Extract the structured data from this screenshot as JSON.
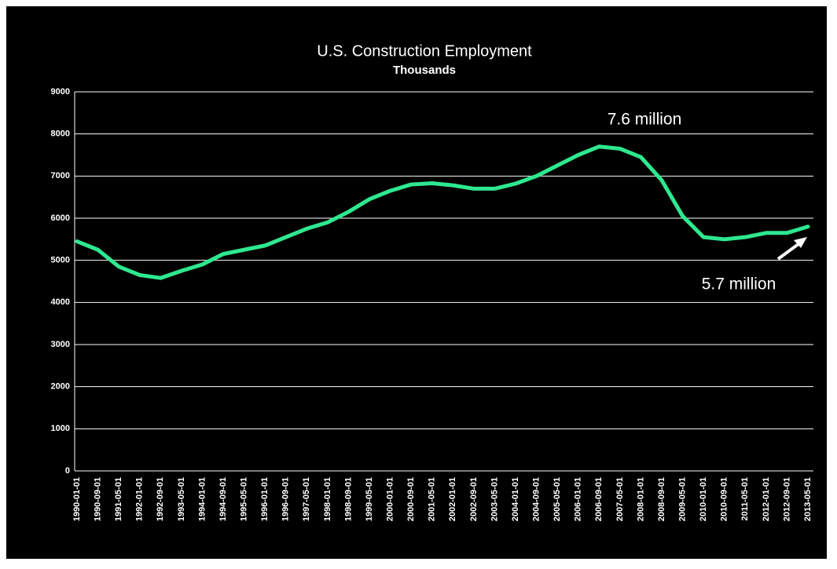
{
  "chart_data": {
    "type": "line",
    "title": "U.S. Construction Employment",
    "subtitle": "Thousands",
    "categories": [
      "1990-01-01",
      "1990-09-01",
      "1991-05-01",
      "1992-01-01",
      "1992-09-01",
      "1993-05-01",
      "1994-01-01",
      "1994-09-01",
      "1995-05-01",
      "1996-01-01",
      "1996-09-01",
      "1997-05-01",
      "1998-01-01",
      "1998-09-01",
      "1999-05-01",
      "2000-01-01",
      "2000-09-01",
      "2001-05-01",
      "2002-01-01",
      "2002-09-01",
      "2003-05-01",
      "2004-01-01",
      "2004-09-01",
      "2005-05-01",
      "2006-01-01",
      "2006-09-01",
      "2007-05-01",
      "2008-01-01",
      "2008-09-01",
      "2009-05-01",
      "2010-01-01",
      "2010-09-01",
      "2011-05-01",
      "2012-01-01",
      "2012-09-01",
      "2013-05-01"
    ],
    "values": [
      5450,
      5250,
      4850,
      4650,
      4580,
      4750,
      4900,
      5150,
      5250,
      5350,
      5550,
      5750,
      5900,
      6150,
      6450,
      6650,
      6800,
      6830,
      6780,
      6700,
      6700,
      6820,
      7000,
      7250,
      7500,
      7700,
      7650,
      7450,
      6900,
      6050,
      5550,
      5500,
      5550,
      5650,
      5650,
      5800
    ],
    "color": "#2ee88f",
    "ylim": [
      0,
      9000
    ],
    "yticks": [
      0,
      1000,
      2000,
      3000,
      4000,
      5000,
      6000,
      7000,
      8000,
      9000
    ],
    "grid": true,
    "annotations": [
      "7.6 million",
      "5.7 million"
    ]
  }
}
